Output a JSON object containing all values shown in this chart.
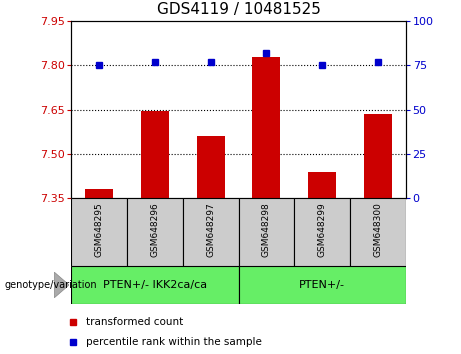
{
  "title": "GDS4119 / 10481525",
  "categories": [
    "GSM648295",
    "GSM648296",
    "GSM648297",
    "GSM648298",
    "GSM648299",
    "GSM648300"
  ],
  "bar_values": [
    7.38,
    7.645,
    7.56,
    7.83,
    7.44,
    7.635
  ],
  "percentile_values": [
    75,
    77,
    77,
    82,
    75,
    77
  ],
  "ylim_left": [
    7.35,
    7.95
  ],
  "ylim_right": [
    0,
    100
  ],
  "yticks_left": [
    7.35,
    7.5,
    7.65,
    7.8,
    7.95
  ],
  "yticks_right": [
    0,
    25,
    50,
    75,
    100
  ],
  "bar_color": "#cc0000",
  "percentile_color": "#0000cc",
  "bar_bottom": 7.35,
  "group1_label": "PTEN+/- IKK2ca/ca",
  "group2_label": "PTEN+/-",
  "group1_indices": [
    0,
    1,
    2
  ],
  "group2_indices": [
    3,
    4,
    5
  ],
  "group_color": "#66ee66",
  "sample_box_color": "#cccccc",
  "genotype_label": "genotype/variation",
  "legend_bar_label": "transformed count",
  "legend_pct_label": "percentile rank within the sample",
  "dotted_lines": [
    7.5,
    7.65,
    7.8
  ],
  "ticklabel_color_left": "#cc0000",
  "ticklabel_color_right": "#0000cc",
  "title_fontsize": 11,
  "axis_fontsize": 8,
  "legend_fontsize": 7.5,
  "sample_fontsize": 6.5,
  "group_fontsize": 8
}
